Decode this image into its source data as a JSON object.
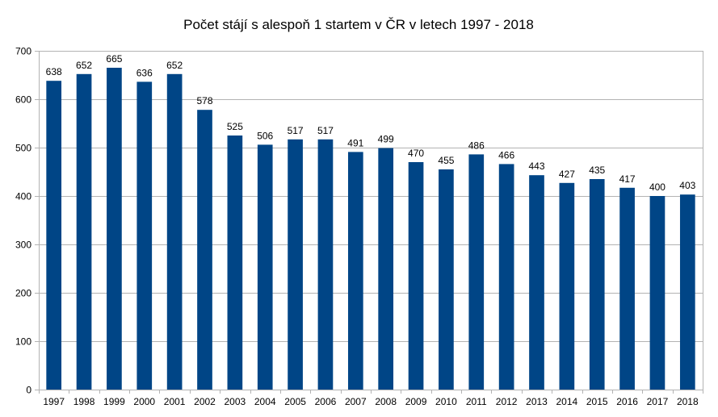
{
  "chart_data": {
    "type": "bar",
    "title": "Počet stájí s alespoň 1 startem v ČR v letech 1997 - 2018",
    "xlabel": "",
    "ylabel": "",
    "categories": [
      "1997",
      "1998",
      "1999",
      "2000",
      "2001",
      "2002",
      "2003",
      "2004",
      "2005",
      "2006",
      "2007",
      "2008",
      "2009",
      "2010",
      "2011",
      "2012",
      "2013",
      "2014",
      "2015",
      "2016",
      "2017",
      "2018"
    ],
    "values": [
      638,
      652,
      665,
      636,
      652,
      578,
      525,
      506,
      517,
      517,
      491,
      499,
      470,
      455,
      486,
      466,
      443,
      427,
      435,
      417,
      400,
      403
    ],
    "ylim": [
      0,
      700
    ],
    "yticks": [
      0,
      100,
      200,
      300,
      400,
      500,
      600,
      700
    ],
    "grid": true,
    "legend": "none",
    "data_labels": true,
    "bar_color": "#004586"
  }
}
